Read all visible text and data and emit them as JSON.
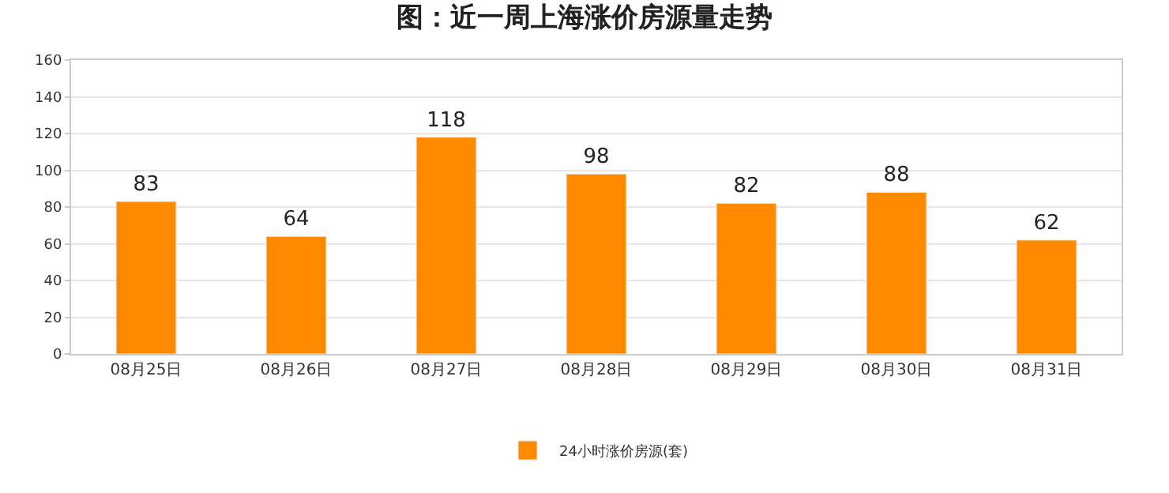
{
  "chart_data": {
    "type": "bar",
    "title": "图：近一周上海涨价房源量走势",
    "categories": [
      "08月25日",
      "08月26日",
      "08月27日",
      "08月28日",
      "08月29日",
      "08月30日",
      "08月31日"
    ],
    "series": [
      {
        "name": "24小时涨价房源(套)",
        "color": "#ff8a00",
        "values": [
          83,
          64,
          118,
          98,
          82,
          88,
          62
        ]
      }
    ],
    "ylim": [
      0,
      160
    ],
    "yticks": [
      0,
      20,
      40,
      60,
      80,
      100,
      120,
      140,
      160
    ],
    "grid": "y",
    "legend": "bottom",
    "data_labels": true
  }
}
